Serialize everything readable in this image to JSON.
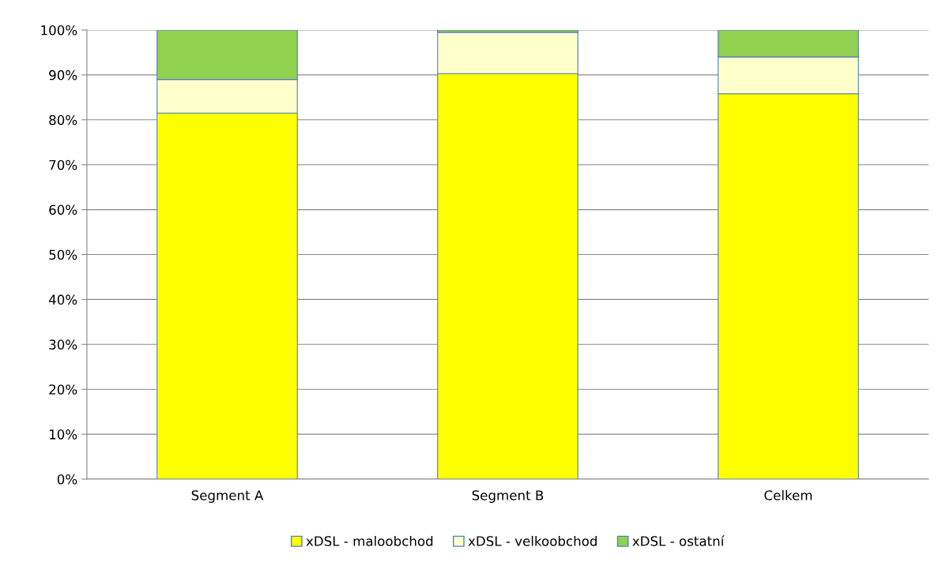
{
  "chart_data": {
    "type": "bar",
    "stacked": true,
    "categories": [
      "Segment A",
      "Segment B",
      "Celkem"
    ],
    "series": [
      {
        "name": "xDSL - maloobchod",
        "color": "#ffff00",
        "values": [
          81.5,
          90.3,
          85.8
        ]
      },
      {
        "name": "xDSL - velkoobchod",
        "color": "#ffffcc",
        "values": [
          7.5,
          9.2,
          8.2
        ]
      },
      {
        "name": "xDSL - ostatní",
        "color": "#92d050",
        "values": [
          11,
          0.5,
          6
        ]
      }
    ],
    "ylim": [
      0,
      100
    ],
    "yticks": [
      {
        "value": 0,
        "label": "0%"
      },
      {
        "value": 10,
        "label": "10%"
      },
      {
        "value": 20,
        "label": "20%"
      },
      {
        "value": 30,
        "label": "30%"
      },
      {
        "value": 40,
        "label": "40%"
      },
      {
        "value": 50,
        "label": "50%"
      },
      {
        "value": 60,
        "label": "60%"
      },
      {
        "value": 70,
        "label": "70%"
      },
      {
        "value": 80,
        "label": "80%"
      },
      {
        "value": 90,
        "label": "90%"
      },
      {
        "value": 100,
        "label": "100%"
      }
    ],
    "grid": "y",
    "legend": "bottom"
  }
}
